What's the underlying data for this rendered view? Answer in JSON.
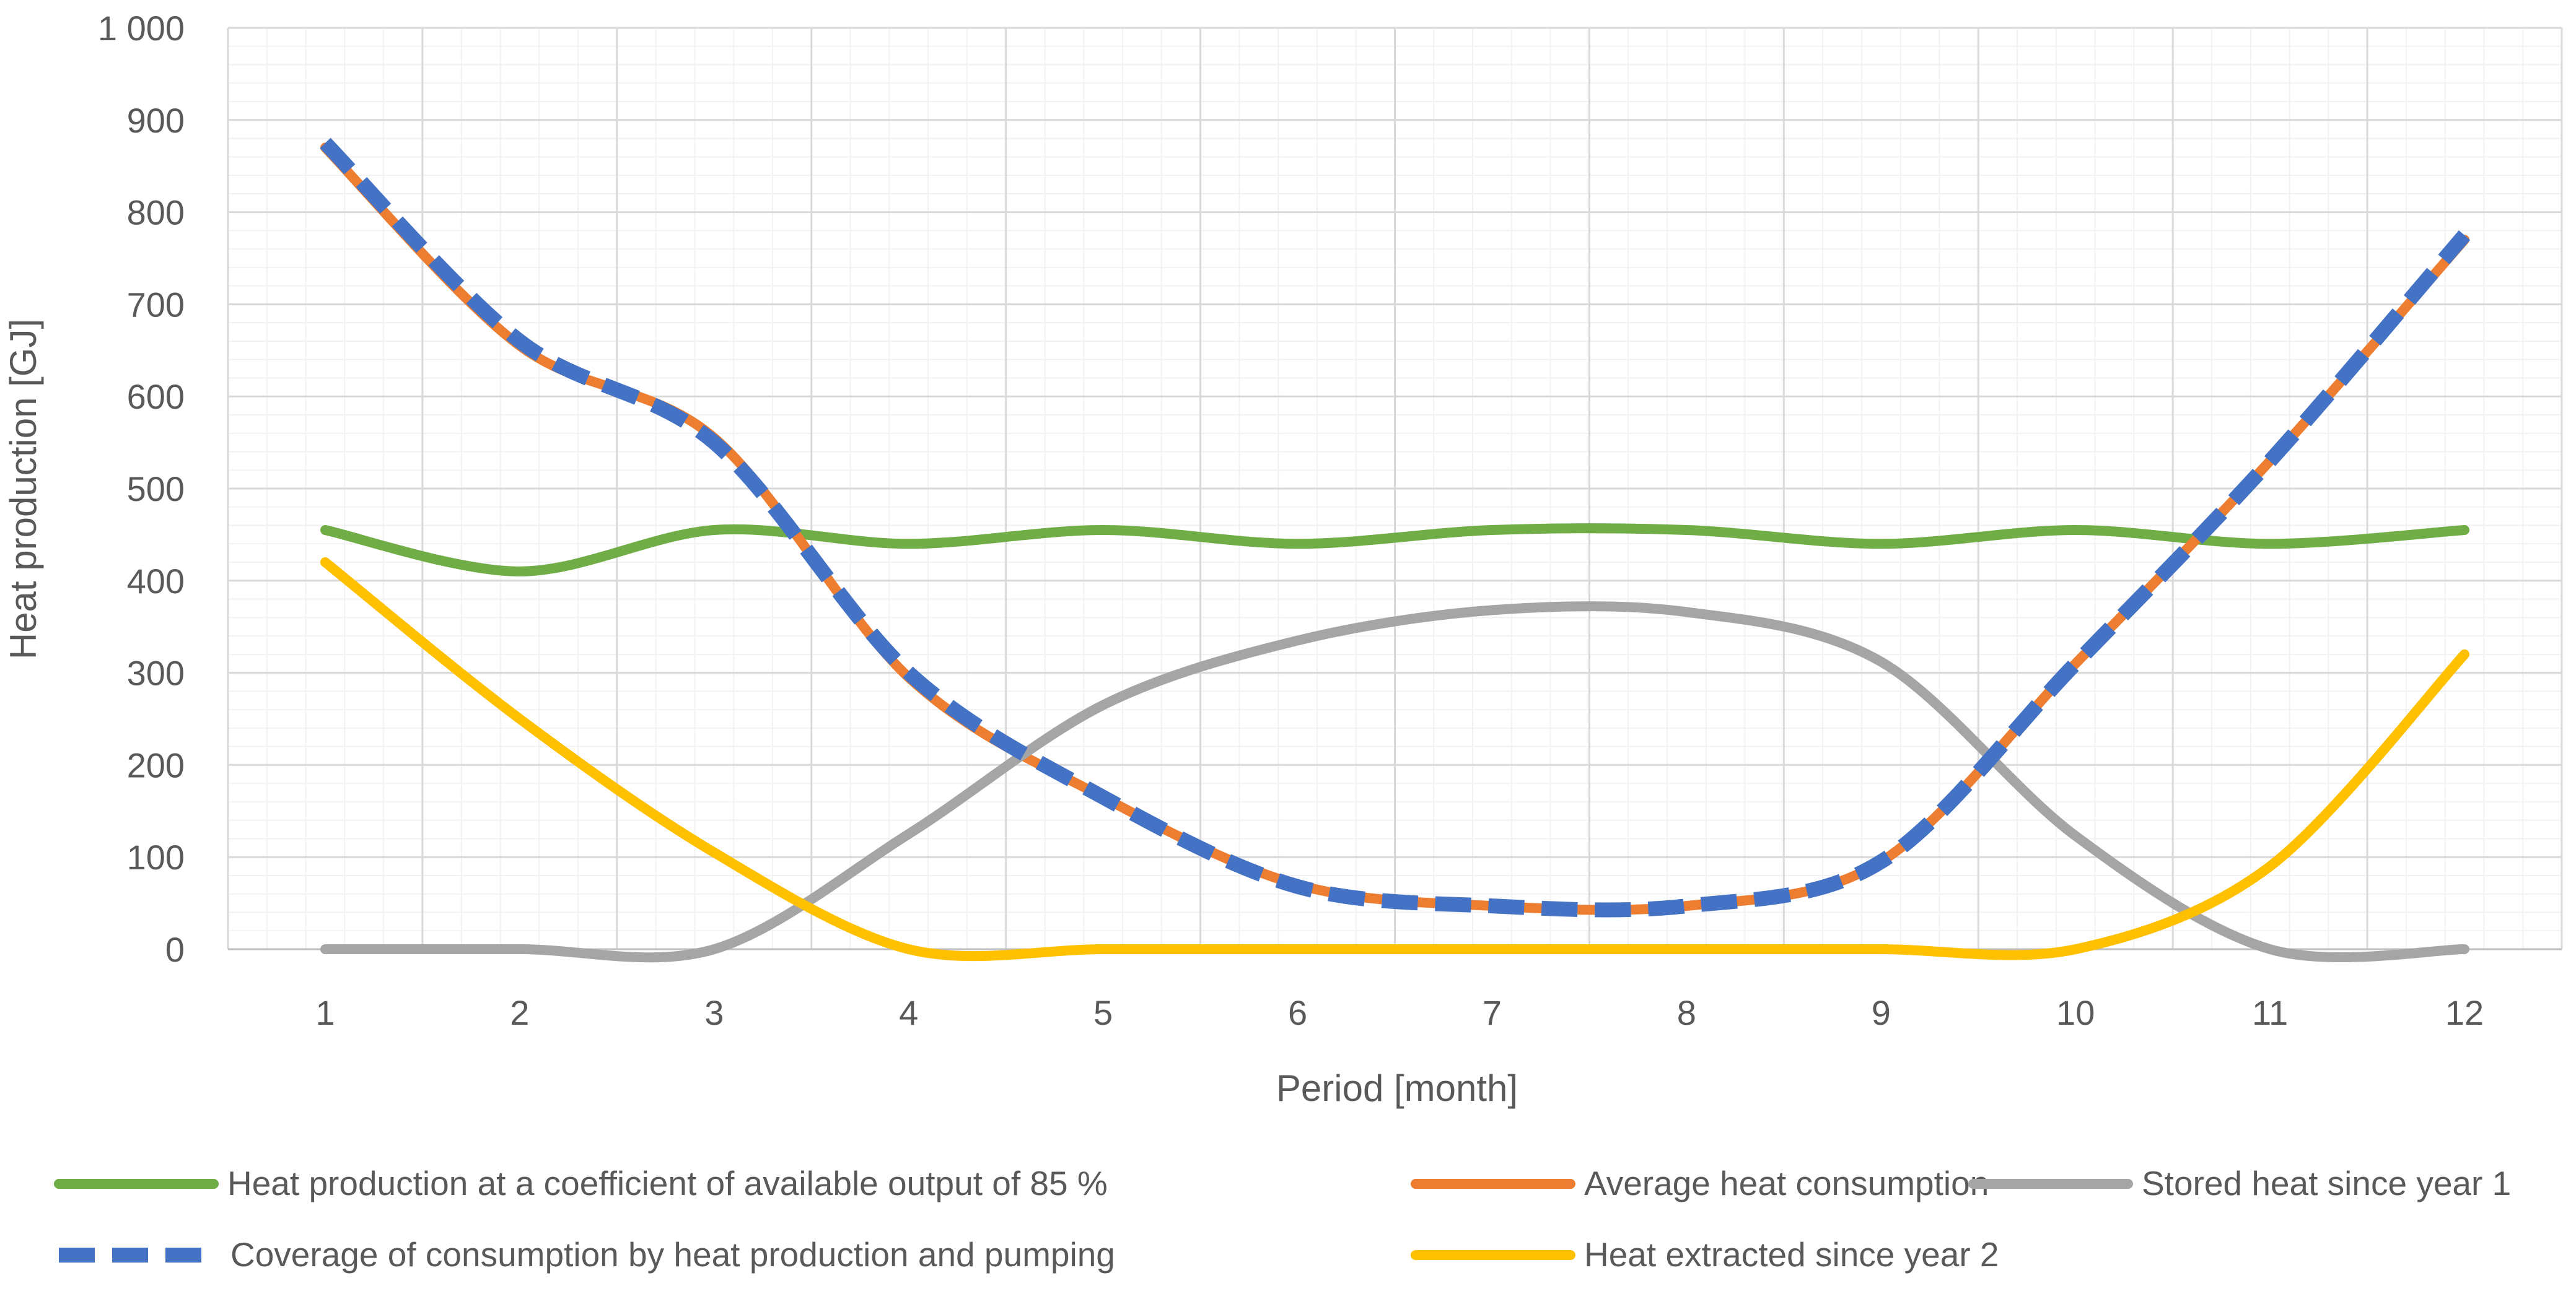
{
  "chart_data": {
    "type": "line",
    "title": "",
    "xlabel": "Period [month]",
    "ylabel": "Heat production [GJ]",
    "x": [
      1,
      2,
      3,
      4,
      5,
      6,
      7,
      8,
      9,
      10,
      11,
      12
    ],
    "x_tick_labels": [
      "1",
      "2",
      "3",
      "4",
      "5",
      "6",
      "7",
      "8",
      "9",
      "10",
      "11",
      "12"
    ],
    "ylim": [
      0,
      1000
    ],
    "y_ticks": [
      0,
      100,
      200,
      300,
      400,
      500,
      600,
      700,
      800,
      900,
      1000
    ],
    "y_tick_labels": [
      "0",
      "100",
      "200",
      "300",
      "400",
      "500",
      "600",
      "700",
      "800",
      "900",
      "1 000"
    ],
    "grid": true,
    "legend_position": "bottom",
    "series": [
      {
        "name": "Heat production at a coefficient of available output of 85 %",
        "color": "#70AD47",
        "dashed": false,
        "values": [
          455,
          410,
          455,
          440,
          455,
          440,
          455,
          455,
          440,
          455,
          440,
          455
        ]
      },
      {
        "name": "Average heat consumption",
        "color": "#ED7D31",
        "dashed": false,
        "values": [
          870,
          655,
          555,
          295,
          165,
          70,
          47,
          47,
          95,
          310,
          530,
          770
        ]
      },
      {
        "name": "Stored heat since year 1",
        "color": "#A5A5A5",
        "dashed": false,
        "values": [
          0,
          0,
          0,
          125,
          265,
          335,
          368,
          366,
          312,
          123,
          0,
          0
        ]
      },
      {
        "name": "Coverage of consumption by heat production and pumping",
        "color": "#4472C4",
        "dashed": true,
        "values": [
          875,
          660,
          550,
          300,
          165,
          68,
          47,
          47,
          95,
          310,
          530,
          775
        ]
      },
      {
        "name": "Heat extracted since year 2",
        "color": "#FFC000",
        "dashed": false,
        "values": [
          420,
          250,
          105,
          0,
          0,
          0,
          0,
          0,
          0,
          0,
          90,
          320
        ]
      }
    ]
  }
}
